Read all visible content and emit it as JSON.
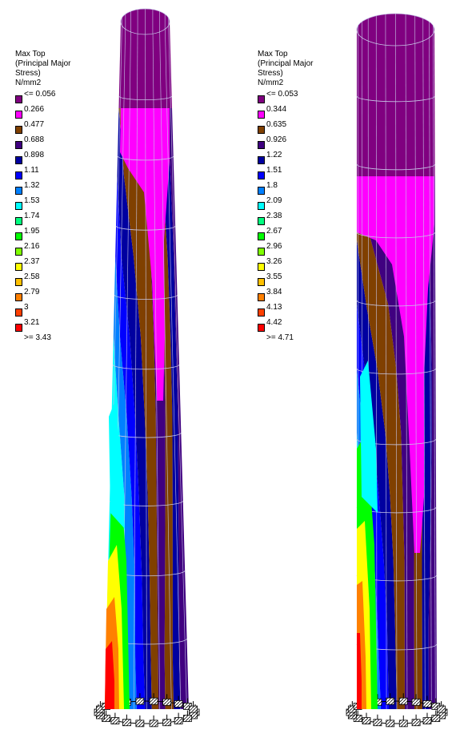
{
  "legends": [
    {
      "title_lines": [
        "Max Top",
        "(Principal Major",
        "Stress)",
        "N/mm2"
      ],
      "labels": [
        "<= 0.056",
        "0.266",
        "0.477",
        "0.688",
        "0.898",
        "1.11",
        "1.32",
        "1.53",
        "1.74",
        "1.95",
        "2.16",
        "2.37",
        "2.58",
        "2.79",
        "3",
        "3.21",
        ">= 3.43"
      ]
    },
    {
      "title_lines": [
        "Max Top",
        "(Principal Major",
        "Stress)",
        "N/mm2"
      ],
      "labels": [
        "<= 0.053",
        "0.344",
        "0.635",
        "0.926",
        "1.22",
        "1.51",
        "1.8",
        "2.09",
        "2.38",
        "2.67",
        "2.96",
        "3.26",
        "3.55",
        "3.84",
        "4.13",
        "4.42",
        ">= 4.71"
      ]
    }
  ],
  "palette": [
    "#800080",
    "#ff00ff",
    "#804000",
    "#400080",
    "#0000a0",
    "#0000ff",
    "#0080ff",
    "#00ffff",
    "#00ff80",
    "#00ff00",
    "#80ff00",
    "#ffff00",
    "#ffc000",
    "#ff8000",
    "#ff4000",
    "#ff0000"
  ]
}
